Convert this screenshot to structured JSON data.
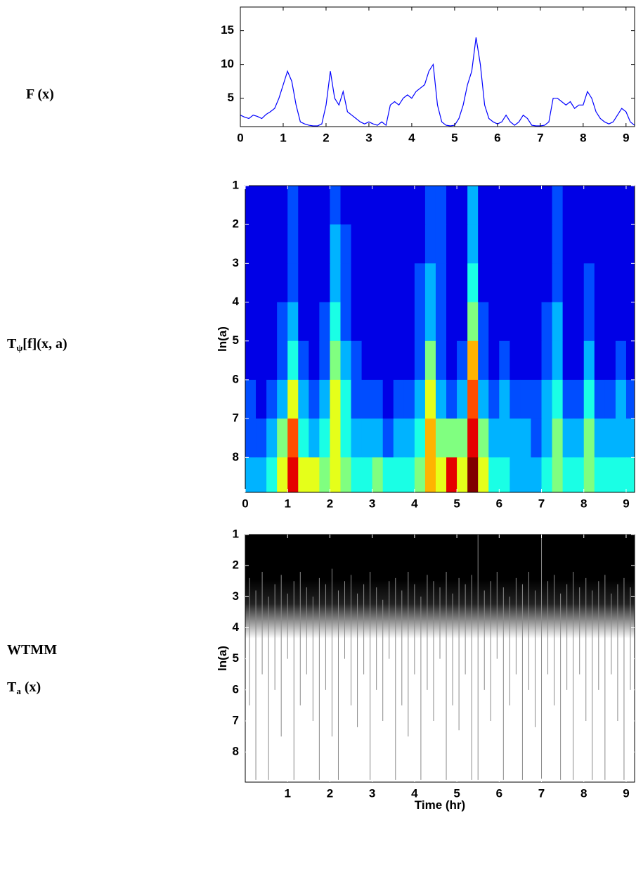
{
  "chart_data": [
    {
      "type": "line",
      "labels": [
        {
          "text": "F (x)"
        }
      ],
      "x": [
        0,
        0.1,
        0.2,
        0.3,
        0.4,
        0.5,
        0.6,
        0.7,
        0.8,
        0.9,
        1.0,
        1.1,
        1.2,
        1.3,
        1.4,
        1.5,
        1.6,
        1.7,
        1.8,
        1.9,
        2.0,
        2.1,
        2.2,
        2.3,
        2.4,
        2.5,
        2.6,
        2.7,
        2.8,
        2.9,
        3.0,
        3.1,
        3.2,
        3.3,
        3.4,
        3.5,
        3.6,
        3.7,
        3.8,
        3.9,
        4.0,
        4.1,
        4.2,
        4.3,
        4.4,
        4.5,
        4.6,
        4.7,
        4.8,
        4.9,
        5.0,
        5.1,
        5.2,
        5.3,
        5.4,
        5.5,
        5.6,
        5.7,
        5.8,
        5.9,
        6.0,
        6.1,
        6.2,
        6.3,
        6.4,
        6.5,
        6.6,
        6.7,
        6.8,
        6.9,
        7.0,
        7.1,
        7.2,
        7.3,
        7.4,
        7.5,
        7.6,
        7.7,
        7.8,
        7.9,
        8.0,
        8.1,
        8.2,
        8.3,
        8.4,
        8.5,
        8.6,
        8.7,
        8.8,
        8.9,
        9.0,
        9.1,
        9.2
      ],
      "values": [
        2.5,
        2.2,
        2,
        2.5,
        2.3,
        2,
        2.6,
        3,
        3.5,
        5,
        7,
        9,
        7.5,
        4,
        1.5,
        1.2,
        1,
        0.9,
        0.9,
        1.2,
        4,
        9,
        5,
        4,
        6,
        3,
        2.5,
        2,
        1.5,
        1.2,
        1.5,
        1.2,
        1,
        1.5,
        1,
        4,
        4.5,
        4,
        5,
        5.5,
        5,
        6,
        6.5,
        7,
        9,
        10,
        4,
        1.5,
        1,
        0.9,
        1,
        2,
        4,
        7,
        9,
        14,
        10,
        4,
        2,
        1.5,
        1.2,
        1.5,
        2.5,
        1.5,
        1,
        1.5,
        2.5,
        2,
        1,
        0.9,
        0.9,
        1,
        1.5,
        5,
        5,
        4.5,
        4,
        4.5,
        3.5,
        4,
        4,
        6,
        5,
        3,
        2,
        1.5,
        1.2,
        1.5,
        2.5,
        3.5,
        3,
        1.5,
        1
      ],
      "color": "#0000ff",
      "xlim": [
        0,
        9.2
      ],
      "xticks": [
        0,
        1,
        2,
        3,
        4,
        5,
        6,
        7,
        8,
        9
      ],
      "ylim": [
        0.8,
        18.5
      ],
      "yticks": [
        5,
        10,
        15
      ]
    },
    {
      "type": "heatmap",
      "labels": [
        {
          "text": "T",
          "sub": "ψ",
          "rest": "[f](x, a)"
        }
      ],
      "ylabel": "ln(a)",
      "colormap": "jet",
      "clim": [
        0,
        10
      ],
      "x": [
        0.125,
        0.375,
        0.625,
        0.875,
        1.125,
        1.375,
        1.625,
        1.875,
        2.125,
        2.375,
        2.625,
        2.875,
        3.125,
        3.375,
        3.625,
        3.875,
        4.125,
        4.375,
        4.625,
        4.875,
        5.125,
        5.375,
        5.625,
        5.875,
        6.125,
        6.375,
        6.625,
        6.875,
        7.125,
        7.375,
        7.625,
        7.875,
        8.125,
        8.375,
        8.625,
        8.875,
        9.125
      ],
      "y": [
        1.5,
        2.5,
        3.5,
        4.5,
        5.5,
        6.5,
        7.5,
        8.5
      ],
      "values": [
        [
          1,
          1,
          1,
          1,
          2,
          1,
          1,
          1,
          2,
          1,
          1,
          1,
          1,
          1,
          1,
          1,
          1,
          2,
          2,
          1,
          1,
          3,
          1,
          1,
          1,
          1,
          1,
          1,
          1,
          2,
          1,
          1,
          1,
          1,
          1,
          1,
          1
        ],
        [
          1,
          1,
          1,
          1,
          2,
          1,
          1,
          1,
          3,
          2,
          1,
          1,
          1,
          1,
          1,
          1,
          1,
          2,
          2,
          1,
          1,
          3,
          1,
          1,
          1,
          1,
          1,
          1,
          1,
          2,
          1,
          1,
          1,
          1,
          1,
          1,
          1
        ],
        [
          1,
          1,
          1,
          1,
          2,
          1,
          1,
          1,
          3,
          2,
          1,
          1,
          1,
          1,
          1,
          1,
          2,
          3,
          2,
          1,
          1,
          4,
          1,
          1,
          1,
          1,
          1,
          1,
          1,
          2,
          1,
          1,
          2,
          1,
          1,
          1,
          1
        ],
        [
          1,
          1,
          1,
          2,
          3,
          1,
          1,
          2,
          4,
          2,
          1,
          1,
          1,
          1,
          1,
          1,
          2,
          3,
          2,
          1,
          1,
          5,
          2,
          1,
          1,
          1,
          1,
          1,
          2,
          3,
          1,
          1,
          2,
          1,
          1,
          1,
          1
        ],
        [
          1,
          1,
          1,
          2,
          4,
          2,
          1,
          2,
          5,
          3,
          2,
          1,
          1,
          1,
          1,
          1,
          2,
          5,
          2,
          1,
          2,
          7,
          2,
          1,
          2,
          1,
          1,
          1,
          2,
          3,
          1,
          1,
          3,
          1,
          1,
          2,
          1
        ],
        [
          2,
          1,
          2,
          3,
          6,
          3,
          2,
          3,
          6,
          4,
          2,
          2,
          2,
          1,
          2,
          2,
          3,
          6,
          3,
          2,
          3,
          8,
          3,
          2,
          3,
          2,
          2,
          2,
          3,
          4,
          2,
          2,
          4,
          2,
          2,
          3,
          2
        ],
        [
          2,
          2,
          3,
          5,
          8,
          4,
          3,
          4,
          6,
          4,
          3,
          3,
          3,
          2,
          3,
          3,
          4,
          7,
          5,
          5,
          5,
          9,
          5,
          3,
          3,
          3,
          3,
          2,
          3,
          5,
          3,
          3,
          5,
          3,
          3,
          3,
          3
        ],
        [
          3,
          3,
          4,
          6,
          9,
          6,
          6,
          5,
          6,
          5,
          4,
          4,
          5,
          4,
          4,
          4,
          5,
          7,
          6,
          9,
          6,
          10,
          6,
          4,
          4,
          3,
          3,
          3,
          4,
          5,
          4,
          4,
          5,
          4,
          4,
          4,
          4
        ]
      ],
      "xlim": [
        0,
        9.2
      ],
      "xticks": [
        0,
        1,
        2,
        3,
        4,
        5,
        6,
        7,
        8,
        9
      ],
      "ylim": [
        1,
        8.9
      ],
      "y_reversed": true,
      "yticks": [
        1,
        2,
        3,
        4,
        5,
        6,
        7,
        8
      ]
    },
    {
      "type": "wtmm",
      "labels": [
        {
          "text": "WTMM"
        },
        {
          "text": "T",
          "sub": "a",
          "rest": " (x)"
        }
      ],
      "ylabel": "ln(a)",
      "xlabel": "Time (hr)",
      "color": "#8a8a8a",
      "x": [
        0.1,
        0.25,
        0.4,
        0.55,
        0.7,
        0.85,
        1.0,
        1.15,
        1.3,
        1.45,
        1.6,
        1.75,
        1.9,
        2.05,
        2.2,
        2.35,
        2.5,
        2.65,
        2.8,
        2.95,
        3.1,
        3.25,
        3.4,
        3.55,
        3.7,
        3.85,
        4.0,
        4.15,
        4.3,
        4.45,
        4.6,
        4.75,
        4.9,
        5.05,
        5.2,
        5.35,
        5.5,
        5.65,
        5.8,
        5.95,
        6.1,
        6.25,
        6.4,
        6.55,
        6.7,
        6.85,
        7.0,
        7.15,
        7.3,
        7.45,
        7.6,
        7.75,
        7.9,
        8.05,
        8.2,
        8.35,
        8.5,
        8.65,
        8.8,
        8.95,
        9.1
      ],
      "from": [
        2.4,
        2.8,
        2.2,
        3.0,
        2.6,
        2.3,
        2.9,
        2.5,
        2.2,
        2.7,
        3.0,
        2.4,
        2.6,
        2.1,
        2.8,
        2.5,
        2.3,
        2.9,
        2.6,
        2.2,
        2.7,
        3.1,
        2.5,
        2.4,
        2.8,
        2.2,
        2.6,
        3.0,
        2.3,
        2.5,
        2.7,
        2.2,
        2.9,
        2.4,
        2.6,
        2.3,
        1.0,
        2.8,
        2.5,
        2.2,
        2.7,
        3.0,
        2.4,
        2.6,
        2.2,
        2.8,
        1.0,
        2.5,
        2.3,
        2.9,
        2.6,
        2.2,
        2.7,
        2.4,
        2.8,
        2.5,
        2.3,
        2.9,
        2.6,
        2.4,
        2.7
      ],
      "to": [
        6.5,
        8.9,
        5.5,
        8.9,
        6,
        7.5,
        5,
        8.9,
        6.5,
        5.5,
        7,
        8.9,
        6,
        7.5,
        8.9,
        5,
        6.5,
        7.2,
        5.5,
        8.9,
        6,
        7,
        5,
        8.9,
        6.5,
        7.5,
        5.5,
        8.9,
        6,
        7,
        5,
        8.9,
        6.5,
        7.3,
        5.5,
        8.9,
        8.9,
        6,
        7,
        5,
        8.9,
        6.5,
        5.5,
        8.9,
        6,
        7.2,
        8.9,
        5.5,
        6.5,
        8.9,
        6,
        8.9,
        5.5,
        7,
        8.9,
        6,
        8.9,
        5.5,
        7,
        8.9,
        6
      ],
      "xlim": [
        0,
        9.2
      ],
      "xticks": [
        1,
        2,
        3,
        4,
        5,
        6,
        7,
        8,
        9
      ],
      "ylim": [
        1,
        8.97
      ],
      "y_reversed": true,
      "yticks": [
        1,
        2,
        3,
        4,
        5,
        6,
        7,
        8
      ]
    }
  ]
}
